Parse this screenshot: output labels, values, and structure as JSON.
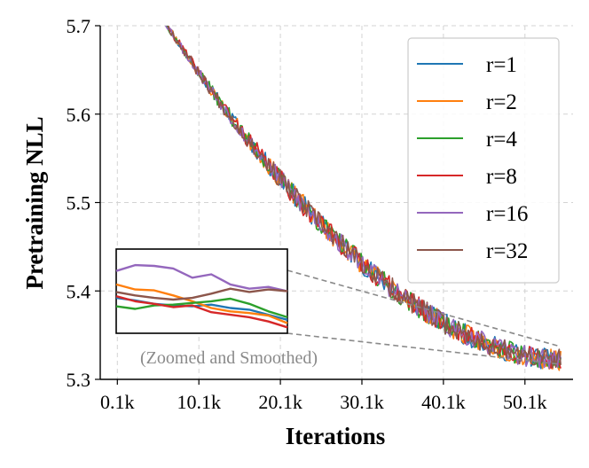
{
  "chart_data": {
    "type": "line",
    "title": "",
    "xlabel": "Iterations",
    "ylabel": "Pretraining NLL",
    "xlim": [
      -2000,
      56000
    ],
    "ylim": [
      5.3,
      5.7
    ],
    "x_ticks": [
      {
        "value": 100,
        "label": "0.1k"
      },
      {
        "value": 10100,
        "label": "10.1k"
      },
      {
        "value": 20100,
        "label": "20.1k"
      },
      {
        "value": 30100,
        "label": "30.1k"
      },
      {
        "value": 40100,
        "label": "40.1k"
      },
      {
        "value": 50100,
        "label": "50.1k"
      }
    ],
    "y_ticks": [
      {
        "value": 5.3,
        "label": "5.3"
      },
      {
        "value": 5.4,
        "label": "5.4"
      },
      {
        "value": 5.5,
        "label": "5.5"
      },
      {
        "value": 5.6,
        "label": "5.6"
      },
      {
        "value": 5.7,
        "label": "5.7"
      }
    ],
    "grid": true,
    "legend_position": "top-right",
    "curve": {
      "x_start": 5900,
      "x_end": 54500,
      "points": 240,
      "y_start": 5.705,
      "y_end": 5.322,
      "power": 0.55,
      "noise_amplitude": 0.012
    },
    "series": [
      {
        "name": "r=1",
        "label": "r=1",
        "color": "#1f77b4",
        "seed": 11,
        "inset_values": [
          5.392,
          5.389,
          5.385,
          5.383,
          5.382,
          5.384,
          5.38,
          5.378,
          5.372,
          5.366
        ]
      },
      {
        "name": "r=2",
        "label": "r=2",
        "color": "#ff7f0e",
        "seed": 23,
        "inset_values": [
          5.408,
          5.402,
          5.401,
          5.395,
          5.388,
          5.38,
          5.376,
          5.374,
          5.371,
          5.362
        ]
      },
      {
        "name": "r=4",
        "label": "r=4",
        "color": "#2ca02c",
        "seed": 37,
        "inset_values": [
          5.382,
          5.379,
          5.383,
          5.384,
          5.386,
          5.388,
          5.391,
          5.385,
          5.376,
          5.369
        ]
      },
      {
        "name": "r=8",
        "label": "r=8",
        "color": "#d62728",
        "seed": 41,
        "inset_values": [
          5.394,
          5.388,
          5.385,
          5.381,
          5.383,
          5.375,
          5.372,
          5.369,
          5.364,
          5.357
        ]
      },
      {
        "name": "r=16",
        "label": "r=16",
        "color": "#9467bd",
        "seed": 53,
        "inset_values": [
          5.424,
          5.431,
          5.43,
          5.427,
          5.416,
          5.42,
          5.408,
          5.403,
          5.405,
          5.4
        ]
      },
      {
        "name": "r=32",
        "label": "r=32",
        "color": "#8c564b",
        "seed": 67,
        "inset_values": [
          5.399,
          5.395,
          5.392,
          5.39,
          5.392,
          5.397,
          5.403,
          5.399,
          5.402,
          5.4
        ]
      }
    ],
    "inset": {
      "caption": "(Zoomed and Smoothed)",
      "x_range": [
        46000,
        54500
      ],
      "y_range": [
        5.35,
        5.45
      ],
      "zoom_connector_targets": [
        {
          "x": 54500,
          "y": 5.337
        },
        {
          "x": 54500,
          "y": 5.317
        }
      ]
    }
  }
}
